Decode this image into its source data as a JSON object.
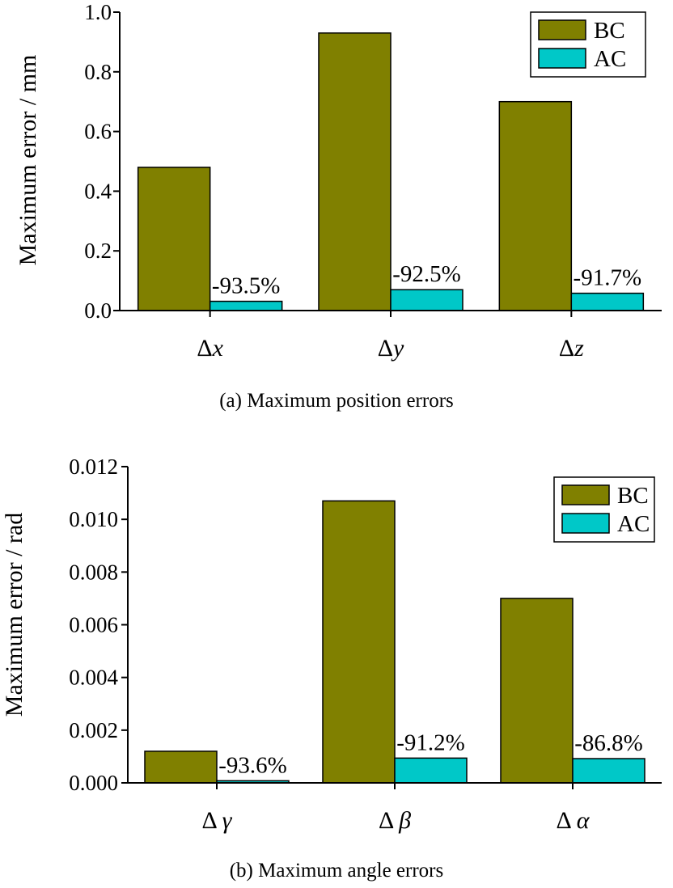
{
  "colors": {
    "BC": "#808000",
    "AC": "#00c8c8"
  },
  "chart_data": [
    {
      "type": "bar",
      "caption": "(a) Maximum position errors",
      "ylabel": "Maximum error / mm",
      "ylim": [
        0,
        1.0
      ],
      "yticks": [
        "0.0",
        "0.2",
        "0.4",
        "0.6",
        "0.8",
        "1.0"
      ],
      "categories": [
        {
          "prefix": "Δ",
          "symbol": "x"
        },
        {
          "prefix": "Δ",
          "symbol": "y"
        },
        {
          "prefix": "Δ",
          "symbol": "z"
        }
      ],
      "series": [
        {
          "name": "BC",
          "values": [
            0.48,
            0.93,
            0.7
          ]
        },
        {
          "name": "AC",
          "values": [
            0.031,
            0.07,
            0.058
          ]
        }
      ],
      "reductions": [
        "-93.5%",
        "-92.5%",
        "-91.7%"
      ],
      "legend_position": "top-right"
    },
    {
      "type": "bar",
      "caption": "(b) Maximum angle errors",
      "ylabel": "Maximum error / rad",
      "ylim": [
        0,
        0.012
      ],
      "yticks": [
        "0.000",
        "0.002",
        "0.004",
        "0.006",
        "0.008",
        "0.010",
        "0.012"
      ],
      "categories": [
        {
          "prefix": "Δ",
          "symbol": "γ"
        },
        {
          "prefix": "Δ",
          "symbol": "β"
        },
        {
          "prefix": "Δ",
          "symbol": "α"
        }
      ],
      "series": [
        {
          "name": "BC",
          "values": [
            0.0012,
            0.0107,
            0.007
          ]
        },
        {
          "name": "AC",
          "values": [
            8e-05,
            0.00094,
            0.00092
          ]
        }
      ],
      "reductions": [
        "-93.6%",
        "-91.2%",
        "-86.8%"
      ],
      "legend_position": "top-right"
    }
  ]
}
